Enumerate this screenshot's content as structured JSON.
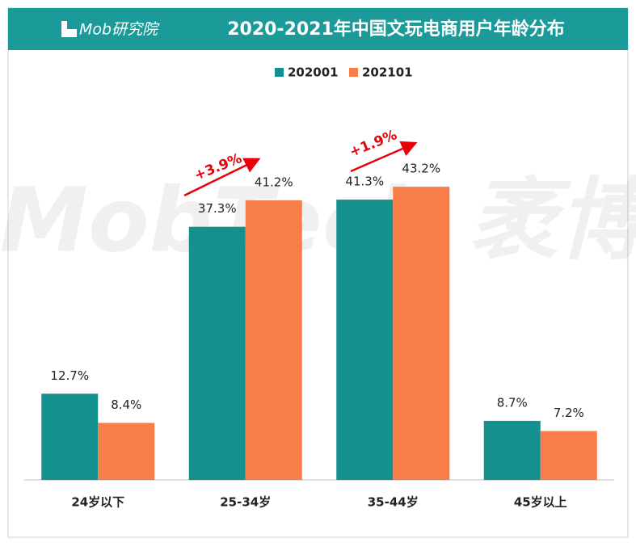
{
  "chart_data": {
    "type": "bar",
    "title": "2020-2021年中国文玩电商用户年龄分布",
    "brand": "Mob研究院",
    "watermark": "MobTech 袤博",
    "categories": [
      "24岁以下",
      "25-34岁",
      "35-44岁",
      "45岁以上"
    ],
    "series": [
      {
        "name": "202001",
        "color": "#14908f",
        "values": [
          12.7,
          37.3,
          41.3,
          8.7
        ],
        "value_labels": [
          "12.7%",
          "37.3%",
          "41.3%",
          "8.7%"
        ]
      },
      {
        "name": "202101",
        "color": "#f97d48",
        "values": [
          8.4,
          41.2,
          43.2,
          7.2
        ],
        "value_labels": [
          "8.4%",
          "41.2%",
          "43.2%",
          "7.2%"
        ]
      }
    ],
    "annotations": [
      "+3.9%",
      "+1.9%"
    ],
    "ylim": [
      0,
      50
    ]
  }
}
